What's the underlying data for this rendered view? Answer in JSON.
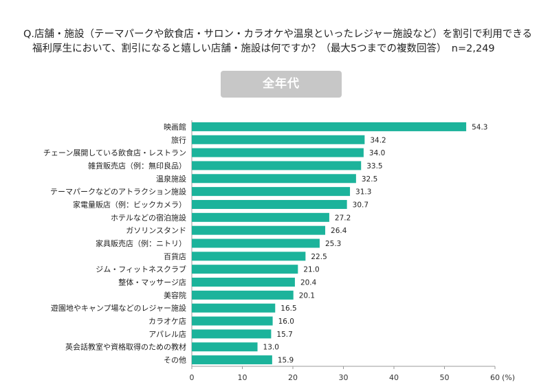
{
  "question": {
    "line1": "Q.店舗・施設（テーマパークや飲食店・サロン・カラオケや温泉といったレジャー施設など）を割引で利用できる",
    "line2": "福利厚生において、割引になると嬉しい店舗・施設は何ですか？（最大5つまでの複数回答）　n=2,249"
  },
  "tag_label": "全年代",
  "chart_data": {
    "type": "bar",
    "orientation": "horizontal",
    "title": "",
    "xlabel": "",
    "ylabel": "",
    "unit_label": "(%)",
    "xlim": [
      0,
      60
    ],
    "xticks": [
      "0",
      "10",
      "20",
      "30",
      "40",
      "50",
      "60"
    ],
    "bar_color": "#1cb39b",
    "categories": [
      "映画館",
      "旅行",
      "チェーン展開している飲食店・レストラン",
      "雑貨販売店（例：無印良品）",
      "温泉施設",
      "テーマパークなどのアトラクション施設",
      "家電量販店（例：ビックカメラ）",
      "ホテルなどの宿泊施設",
      "ガソリンスタンド",
      "家具販売店（例：ニトリ）",
      "百貨店",
      "ジム・フィットネスクラブ",
      "整体・マッサージ店",
      "美容院",
      "遊園地やキャンプ場などのレジャー施設",
      "カラオケ店",
      "アパレル店",
      "英会話教室や資格取得のための教材",
      "その他"
    ],
    "values": [
      54.3,
      34.2,
      34.0,
      33.5,
      32.5,
      31.3,
      30.7,
      27.2,
      26.4,
      25.3,
      22.5,
      21.0,
      20.4,
      20.1,
      16.5,
      16.0,
      15.7,
      13.0,
      15.9
    ],
    "value_labels": [
      "54.3",
      "34.2",
      "34.0",
      "33.5",
      "32.5",
      "31.3",
      "30.7",
      "27.2",
      "26.4",
      "25.3",
      "22.5",
      "21.0",
      "20.4",
      "20.1",
      "16.5",
      "16.0",
      "15.7",
      "13.0",
      "15.9"
    ]
  }
}
